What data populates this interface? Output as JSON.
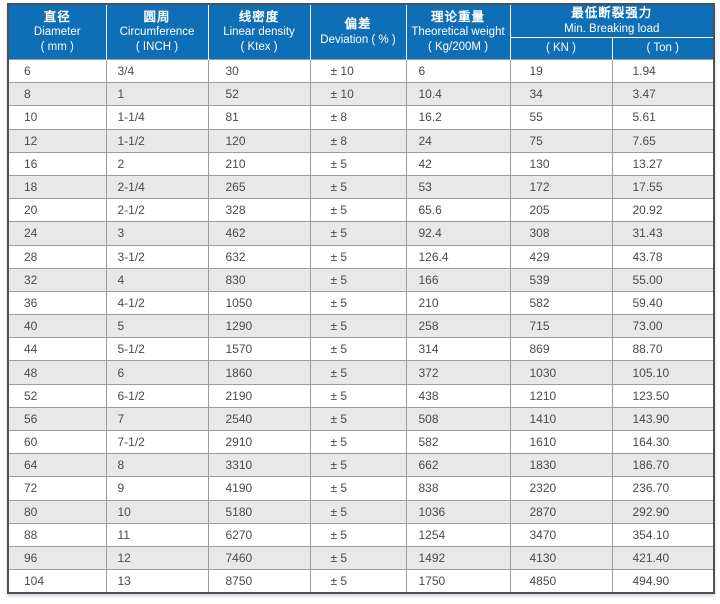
{
  "header": {
    "columns": [
      {
        "cn": "直径",
        "en": "Diameter",
        "unit": "( mm )"
      },
      {
        "cn": "圆周",
        "en": "Circumference",
        "unit": "( INCH )"
      },
      {
        "cn": "线密度",
        "en": "Linear density",
        "unit": "( Ktex )"
      },
      {
        "cn": "偏差",
        "en": "Deviation ( % )"
      },
      {
        "cn": "理论重量",
        "en": "Theoretical weight",
        "unit": "( Kg/200M )"
      }
    ],
    "breaking_load": {
      "cn": "最低断裂强力",
      "en": "Min. Breaking load",
      "kn": "( KN )",
      "ton": "( Ton )"
    }
  },
  "rows": [
    [
      "6",
      "3/4",
      "30",
      "± 10",
      "6",
      "19",
      "1.94"
    ],
    [
      "8",
      "1",
      "52",
      "± 10",
      "10.4",
      "34",
      "3.47"
    ],
    [
      "10",
      "1-1/4",
      "81",
      "± 8",
      "16.2",
      "55",
      "5.61"
    ],
    [
      "12",
      "1-1/2",
      "120",
      "± 8",
      "24",
      "75",
      "7.65"
    ],
    [
      "16",
      "2",
      "210",
      "± 5",
      "42",
      "130",
      "13.27"
    ],
    [
      "18",
      "2-1/4",
      "265",
      "± 5",
      "53",
      "172",
      "17.55"
    ],
    [
      "20",
      "2-1/2",
      "328",
      "± 5",
      "65.6",
      "205",
      "20.92"
    ],
    [
      "24",
      "3",
      "462",
      "± 5",
      "92.4",
      "308",
      "31.43"
    ],
    [
      "28",
      "3-1/2",
      "632",
      "± 5",
      "126.4",
      "429",
      "43.78"
    ],
    [
      "32",
      "4",
      "830",
      "± 5",
      "166",
      "539",
      "55.00"
    ],
    [
      "36",
      "4-1/2",
      "1050",
      "± 5",
      "210",
      "582",
      "59.40"
    ],
    [
      "40",
      "5",
      "1290",
      "± 5",
      "258",
      "715",
      "73.00"
    ],
    [
      "44",
      "5-1/2",
      "1570",
      "± 5",
      "314",
      "869",
      "88.70"
    ],
    [
      "48",
      "6",
      "1860",
      "± 5",
      "372",
      "1030",
      "105.10"
    ],
    [
      "52",
      "6-1/2",
      "2190",
      "± 5",
      "438",
      "1210",
      "123.50"
    ],
    [
      "56",
      "7",
      "2540",
      "± 5",
      "508",
      "1410",
      "143.90"
    ],
    [
      "60",
      "7-1/2",
      "2910",
      "± 5",
      "582",
      "1610",
      "164.30"
    ],
    [
      "64",
      "8",
      "3310",
      "± 5",
      "662",
      "1830",
      "186.70"
    ],
    [
      "72",
      "9",
      "4190",
      "± 5",
      "838",
      "2320",
      "236.70"
    ],
    [
      "80",
      "10",
      "5180",
      "± 5",
      "1036",
      "2870",
      "292.90"
    ],
    [
      "88",
      "11",
      "6270",
      "± 5",
      "1254",
      "3470",
      "354.10"
    ],
    [
      "96",
      "12",
      "7460",
      "± 5",
      "1492",
      "4130",
      "421.40"
    ],
    [
      "104",
      "13",
      "8750",
      "± 5",
      "1750",
      "4850",
      "494.90"
    ]
  ],
  "colors": {
    "header_bg": "#0e6fb7",
    "stripe": "#e8e8e8",
    "frame": "#49525c",
    "grid": "#9c9c9c",
    "text": "#4a4a4a"
  }
}
